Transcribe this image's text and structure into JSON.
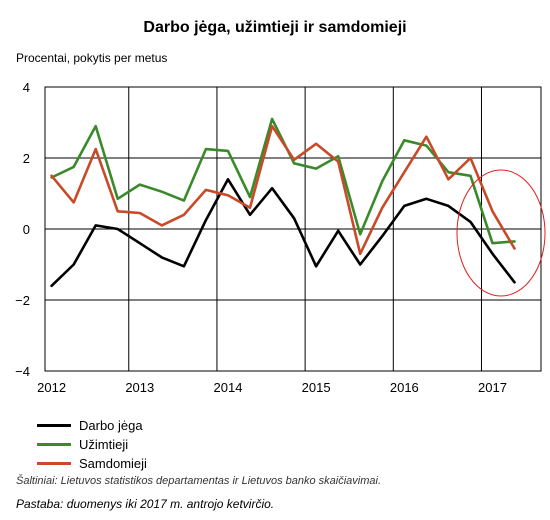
{
  "chart_data": {
    "type": "line",
    "title": "Darbo jėga, užimtieji ir samdomieji",
    "ylabel": "Procentai, pokytis per metus",
    "xlabel": "",
    "ylim": [
      -4,
      4
    ],
    "yticks": [
      "4",
      "2",
      "0",
      "−2",
      "−4"
    ],
    "ytick_values": [
      4,
      2,
      0,
      -2,
      -4
    ],
    "xticks": [
      "2012",
      "2013",
      "2014",
      "2015",
      "2016",
      "2017"
    ],
    "xtick_values": [
      2012,
      2013,
      2014,
      2015,
      2016,
      2017
    ],
    "x": [
      2012.0,
      2012.25,
      2012.5,
      2012.75,
      2013.0,
      2013.25,
      2013.5,
      2013.75,
      2014.0,
      2014.25,
      2014.5,
      2014.75,
      2015.0,
      2015.25,
      2015.5,
      2015.75,
      2016.0,
      2016.25,
      2016.5,
      2016.75,
      2017.0,
      2017.25
    ],
    "grid": true,
    "legend_position": "bottom-left",
    "series": [
      {
        "name": "Darbo jėga",
        "color": "#000000",
        "values": [
          -1.6,
          -1.0,
          0.1,
          0.0,
          -0.4,
          -0.8,
          -1.05,
          0.25,
          1.4,
          0.4,
          1.15,
          0.3,
          -1.05,
          -0.05,
          -1.0,
          -0.2,
          0.65,
          0.85,
          0.65,
          0.2,
          -0.7,
          -1.5
        ]
      },
      {
        "name": "Užimtieji",
        "color": "#3a8a2a",
        "values": [
          1.45,
          1.75,
          2.9,
          0.85,
          1.25,
          1.05,
          0.8,
          2.25,
          2.2,
          0.9,
          3.1,
          1.85,
          1.7,
          2.05,
          -0.15,
          1.35,
          2.5,
          2.35,
          1.6,
          1.5,
          -0.4,
          -0.35
        ]
      },
      {
        "name": "Samdomieji",
        "color": "#c84a28",
        "values": [
          1.5,
          0.75,
          2.25,
          0.5,
          0.45,
          0.1,
          0.4,
          1.1,
          0.95,
          0.6,
          2.9,
          1.95,
          2.4,
          1.9,
          -0.7,
          0.6,
          1.6,
          2.6,
          1.4,
          2.0,
          0.5,
          -0.55
        ]
      }
    ],
    "annotations": [
      {
        "type": "ellipse",
        "color": "#e02020",
        "note": "highlight on 2017 values"
      }
    ]
  },
  "source_text": "Šaltiniai: Lietuvos statistikos departamentas ir Lietuvos banko skaičiavimai.",
  "note_text": "Pastaba: duomenys iki 2017 m. antrojo ketvirčio."
}
